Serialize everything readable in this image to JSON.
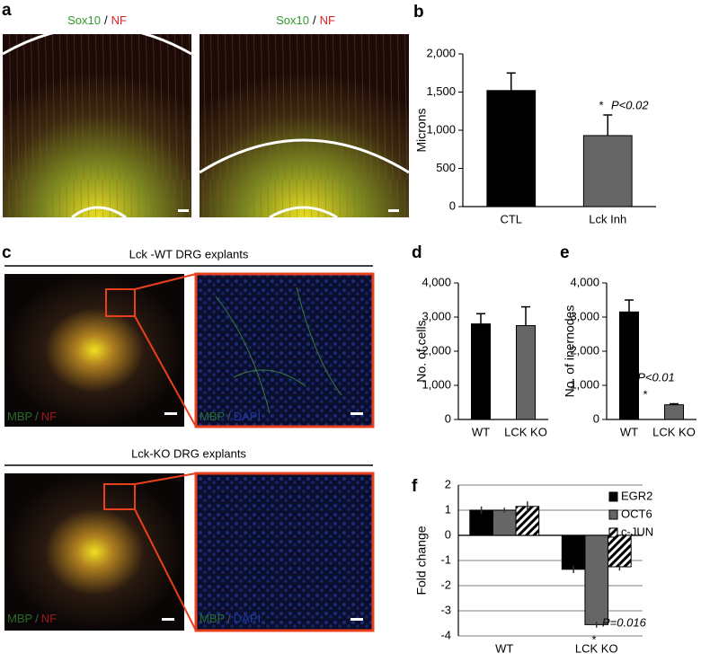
{
  "panel_labels": [
    "a",
    "b",
    "c",
    "d",
    "e",
    "f"
  ],
  "images": [
    {
      "label": [
        "Sox10",
        "/",
        "NF"
      ]
    },
    {
      "label": [
        "Sox10",
        "/",
        "NF"
      ]
    },
    {
      "label": [
        "MBP",
        "/",
        "NF"
      ]
    },
    {
      "label": [
        "MBP",
        "/",
        "DAPI"
      ]
    },
    {
      "label": [
        "MBP",
        "/",
        "NF"
      ]
    },
    {
      "label": [
        "MBP",
        "/",
        "DAPI"
      ]
    }
  ],
  "explant_titles": [
    "Lck -WT DRG explants",
    "Lck-KO DRG explants"
  ],
  "chart_data": [
    {
      "type": "bar",
      "y_label": "Microns",
      "categories": [
        "CTL",
        "Lck Inh"
      ],
      "values": [
        1520,
        930
      ],
      "errors": [
        230,
        270
      ],
      "colors": [
        "#000000",
        "#666666"
      ],
      "ylim": [
        0,
        2000
      ],
      "yticks": [
        0,
        500,
        {
          "value": 1000,
          "label": "1,000"
        },
        {
          "value": 1500,
          "label": "1,500"
        },
        {
          "value": 2000,
          "label": "2,000"
        }
      ],
      "annotations": [
        "*",
        "P<0.02"
      ]
    },
    {
      "type": "bar",
      "y_label": "No. of cells",
      "categories": [
        "WT",
        "LCK KO"
      ],
      "values": [
        2800,
        2750
      ],
      "errors": [
        300,
        550
      ],
      "colors": [
        "#000000",
        "#666666"
      ],
      "ylim": [
        0,
        4000
      ],
      "yticks": [
        0,
        {
          "value": 1000,
          "label": "1,000"
        },
        {
          "value": 2000,
          "label": "2,000"
        },
        {
          "value": 3000,
          "label": "3,000"
        },
        {
          "value": 4000,
          "label": "4,000"
        }
      ],
      "annotations": []
    },
    {
      "type": "bar",
      "y_label": "No. of inernodes",
      "categories": [
        "WT",
        "LCK KO"
      ],
      "values": [
        3150,
        430
      ],
      "errors": [
        350,
        30
      ],
      "colors": [
        "#000000",
        "#666666"
      ],
      "ylim": [
        0,
        4000
      ],
      "yticks": [
        0,
        {
          "value": 1000,
          "label": "1,000"
        },
        {
          "value": 2000,
          "label": "2,000"
        },
        {
          "value": 3000,
          "label": "3,000"
        },
        {
          "value": 4000,
          "label": "4,000"
        }
      ],
      "annotations": [
        "P<0.01",
        "*"
      ]
    },
    {
      "type": "grouped_bar",
      "y_label": "Fold change",
      "categories": [
        "WT",
        "LCK KO"
      ],
      "series": [
        {
          "name": "EGR2",
          "color": "#000000",
          "values": [
            1.0,
            -1.35
          ],
          "errors": [
            0.15,
            0.15
          ]
        },
        {
          "name": "OCT6",
          "color": "#666666",
          "values": [
            1.0,
            -3.55
          ],
          "errors": [
            0.1,
            0.12
          ]
        },
        {
          "name": "c-JUN",
          "color": "#ffffff",
          "hatch": true,
          "values": [
            1.15,
            -1.25
          ],
          "errors": [
            0.2,
            0.15
          ]
        }
      ],
      "ylim": [
        -4,
        2
      ],
      "yticks": [
        -4,
        -3,
        -2,
        -1,
        0,
        1,
        2
      ],
      "grid": true,
      "legend": "upper right",
      "annotations": [
        "P=0.016",
        "*"
      ]
    }
  ]
}
